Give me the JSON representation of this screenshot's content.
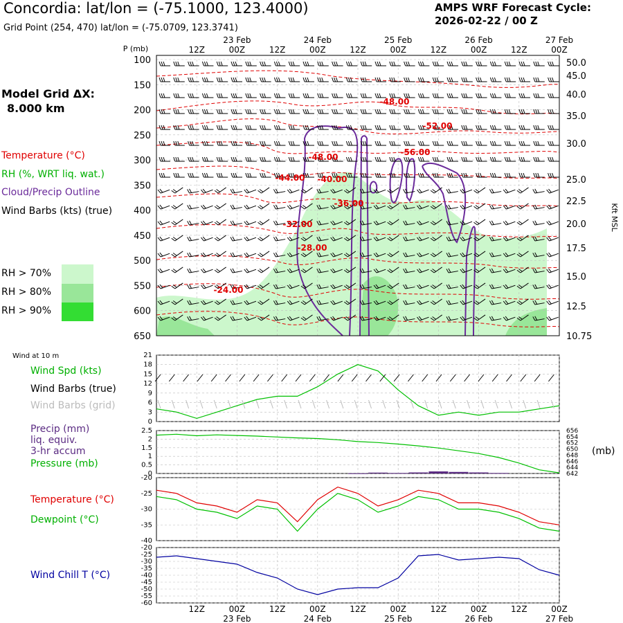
{
  "header": {
    "title": "Concordia:  lat/lon = (-75.1000, 123.4000)",
    "cycle_label": "AMPS WRF Forecast Cycle:",
    "cycle_value": "2026-02-22 / 00  Z",
    "grid_point": "Grid Point (254, 470) lat/lon = (-75.0709, 123.3741)"
  },
  "model": {
    "label": "Model Grid ΔX:",
    "value": "8.000 km"
  },
  "legend": {
    "temperature": "Temperature (°C)",
    "rh": "RH (%, WRT liq. wat.)",
    "cloud": "Cloud/Precip Outline",
    "wind_barbs": "Wind Barbs (kts) (true)",
    "rh70": "RH > 70%",
    "rh80": "RH > 80%",
    "rh90": "RH > 90%",
    "rh70_color": "#ccf7cc",
    "rh80_color": "#99e699",
    "rh90_color": "#33dd33"
  },
  "colors": {
    "temperature": "#e00000",
    "dewpoint": "#00c000",
    "wind_chill": "#0000a0",
    "precip": "#5a2a82",
    "cloud": "#6a2a9a",
    "grid": "#bbbbbb"
  },
  "time_axis": {
    "top_hours": [
      "12Z",
      "00Z",
      "12Z",
      "00Z",
      "12Z",
      "00Z",
      "12Z",
      "00Z",
      "12Z",
      "00Z"
    ],
    "top_dates": [
      "23 Feb",
      "24 Feb",
      "25 Feb",
      "26 Feb",
      "27 Feb"
    ],
    "bottom_hours": [
      "12Z",
      "00Z",
      "12Z",
      "00Z",
      "12Z",
      "00Z",
      "12Z",
      "00Z",
      "12Z",
      "00Z"
    ],
    "bottom_dates": [
      "23 Feb",
      "24 Feb",
      "25 Feb",
      "26 Feb",
      "27 Feb"
    ]
  },
  "chart_data": [
    {
      "id": "cross-section",
      "type": "contour",
      "ylabel": "P (mb)",
      "y_right_label": "Kft MSL",
      "pressure_ticks": [
        "100",
        "150",
        "200",
        "250",
        "300",
        "350",
        "400",
        "450",
        "500",
        "550",
        "600",
        "650"
      ],
      "kft_ticks": [
        "50.0",
        "45.0",
        "40.0",
        "35.0",
        "30.0",
        "25.0",
        "22.5",
        "20.0",
        "17.5",
        "15.0",
        "12.5",
        "10.75"
      ],
      "temperature_labels": [
        "-48.00",
        "-52.00",
        "-56.00",
        "-48.00",
        "-44.00",
        "-40.00",
        "-36.00",
        "-32.00",
        "-28.00",
        "-24.00"
      ]
    },
    {
      "id": "wind-10m",
      "type": "line",
      "panel_label": "Wind at 10 m",
      "legend": [
        "Wind Spd (kts)",
        "Wind Barbs (true)",
        "Wind Barbs (grid)"
      ],
      "yticks": [
        "0",
        "3",
        "6",
        "9",
        "12",
        "15",
        "18",
        "21"
      ],
      "ylim": [
        0,
        21
      ],
      "x_hours": [
        0,
        6,
        12,
        18,
        24,
        30,
        36,
        42,
        48,
        54,
        60,
        66,
        72,
        78,
        84,
        90,
        96,
        102,
        108,
        114,
        120
      ],
      "wind_speed": [
        4,
        3,
        1,
        3,
        5,
        7,
        8,
        8,
        11,
        15,
        18,
        16,
        10,
        5,
        2,
        3,
        2,
        3,
        3,
        4,
        5
      ]
    },
    {
      "id": "precip-pressure",
      "type": "line",
      "legend": [
        "Precip (mm)",
        "liq. equiv.",
        "3-hr accum",
        "Pressure (mb)"
      ],
      "yticks_left": [
        "0",
        "0.5",
        "1",
        "1.5",
        "2",
        "2.5"
      ],
      "yticks_right": [
        "642",
        "644",
        "646",
        "648",
        "650",
        "652",
        "654",
        "656"
      ],
      "right_unit": "(mb)",
      "ylim_left": [
        0,
        2.5
      ],
      "ylim_right": [
        642,
        656
      ],
      "x_hours": [
        0,
        6,
        12,
        18,
        24,
        30,
        36,
        42,
        48,
        54,
        60,
        66,
        72,
        78,
        84,
        90,
        96,
        102,
        108,
        114,
        120
      ],
      "pressure": [
        654.5,
        654.8,
        654.3,
        654.6,
        654.4,
        654.2,
        653.9,
        653.6,
        653.4,
        653.0,
        652.4,
        652.1,
        651.6,
        651.0,
        650.3,
        649.4,
        648.5,
        647.2,
        645.4,
        643.2,
        642.2
      ],
      "precip_times": [
        60,
        66,
        72,
        78,
        84,
        90,
        96,
        102
      ],
      "precip_values": [
        0.01,
        0.05,
        0.03,
        0.06,
        0.12,
        0.09,
        0.06,
        0.03
      ]
    },
    {
      "id": "temperature-dewpoint",
      "type": "line",
      "legend": [
        "Temperature (°C)",
        "Dewpoint (°C)"
      ],
      "yticks": [
        "-20",
        "-25",
        "-30",
        "-35",
        "-40"
      ],
      "ylim": [
        -40,
        -20
      ],
      "x_hours": [
        0,
        6,
        12,
        18,
        24,
        30,
        36,
        42,
        48,
        54,
        60,
        66,
        72,
        78,
        84,
        90,
        96,
        102,
        108,
        114,
        120
      ],
      "temperature": [
        -24,
        -25,
        -28,
        -29,
        -31,
        -27,
        -28,
        -34,
        -27,
        -23,
        -25,
        -29,
        -27,
        -24,
        -25,
        -28,
        -28,
        -29,
        -31,
        -34,
        -35
      ],
      "dewpoint": [
        -26,
        -27,
        -30,
        -31,
        -33,
        -29,
        -30,
        -37,
        -30,
        -25,
        -27,
        -31,
        -29,
        -26,
        -27,
        -30,
        -30,
        -31,
        -33,
        -36,
        -37
      ]
    },
    {
      "id": "wind-chill",
      "type": "line",
      "legend": [
        "Wind Chill T (°C)"
      ],
      "yticks": [
        "-20",
        "-25",
        "-30",
        "-35",
        "-40",
        "-45",
        "-50",
        "-55",
        "-60"
      ],
      "ylim": [
        -60,
        -20
      ],
      "x_hours": [
        0,
        6,
        12,
        18,
        24,
        30,
        36,
        42,
        48,
        54,
        60,
        66,
        72,
        78,
        84,
        90,
        96,
        102,
        108,
        114,
        120
      ],
      "wind_chill": [
        -27,
        -26,
        -28,
        -30,
        -32,
        -38,
        -42,
        -50,
        -54,
        -50,
        -49,
        -49,
        -42,
        -26,
        -25,
        -29,
        -28,
        -27,
        -28,
        -36,
        -40
      ]
    }
  ]
}
